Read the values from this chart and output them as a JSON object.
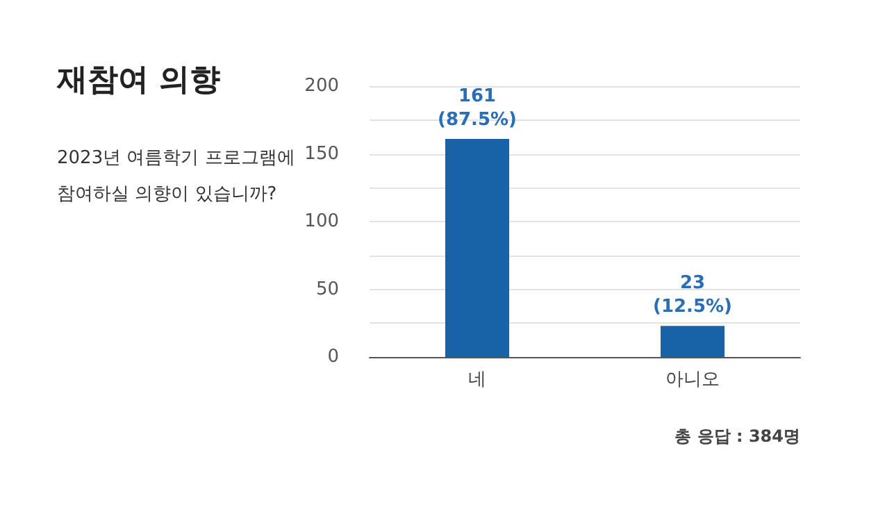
{
  "chart_data": {
    "type": "bar",
    "title": "재참여 의향",
    "subtitle": "2023년 여름학기 프로그램에\n참여하실 의향이 있습니까?",
    "categories": [
      "네",
      "아니오"
    ],
    "values": [
      161,
      23
    ],
    "color": "#1a62a8",
    "value_labels": [
      "161\n(87.5%)",
      "23\n(12.5%)"
    ],
    "ylim": [
      0,
      200
    ],
    "yticks": [
      0,
      {
        "value": 25,
        "label": null
      },
      50,
      {
        "value": 75,
        "label": null
      },
      100,
      {
        "value": 125,
        "label": null
      },
      150,
      {
        "value": 175,
        "label": null
      },
      200
    ],
    "grid": "y",
    "annotations": [
      "총 응답 : 384명"
    ]
  }
}
